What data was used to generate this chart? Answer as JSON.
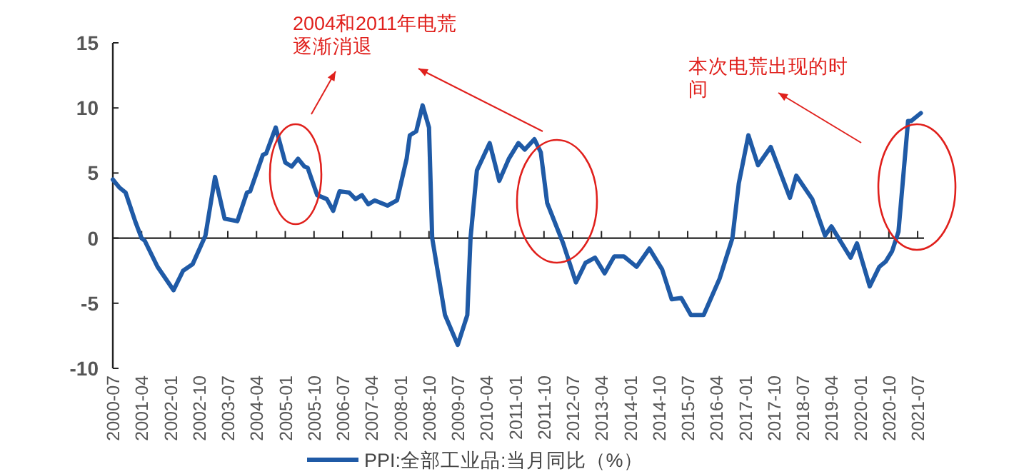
{
  "chart_data": {
    "type": "line",
    "x": [
      "2000-07",
      "2000-09",
      "2000-11",
      "2001-02",
      "2001-04",
      "2001-05",
      "2001-09",
      "2002-02",
      "2002-05",
      "2002-08",
      "2002-12",
      "2003-03",
      "2003-06",
      "2003-10",
      "2004-01",
      "2004-02",
      "2004-06",
      "2004-07",
      "2004-10",
      "2005-01",
      "2005-03",
      "2005-05",
      "2005-07",
      "2005-08",
      "2005-11",
      "2006-02",
      "2006-04",
      "2006-06",
      "2006-09",
      "2006-11",
      "2007-01",
      "2007-03",
      "2007-05",
      "2007-09",
      "2007-12",
      "2008-03",
      "2008-04",
      "2008-06",
      "2008-08",
      "2008-10",
      "2008-11",
      "2009-03",
      "2009-07",
      "2009-10",
      "2009-11",
      "2010-01",
      "2010-05",
      "2010-08",
      "2010-11",
      "2011-02",
      "2011-04",
      "2011-07",
      "2011-09",
      "2011-11",
      "2012-04",
      "2012-06",
      "2012-08",
      "2012-11",
      "2013-02",
      "2013-05",
      "2013-08",
      "2013-11",
      "2014-03",
      "2014-07",
      "2014-11",
      "2015-02",
      "2015-05",
      "2015-08",
      "2015-12",
      "2016-05",
      "2016-09",
      "2016-11",
      "2017-02",
      "2017-05",
      "2017-09",
      "2018-03",
      "2018-05",
      "2018-10",
      "2019-02",
      "2019-04",
      "2019-07",
      "2019-10",
      "2019-12",
      "2020-04",
      "2020-07",
      "2020-09",
      "2020-11",
      "2021-01",
      "2021-04",
      "2021-05",
      "2021-08"
    ],
    "series": [
      {
        "name": "PPI:全部工业品:当月同比（%）",
        "color": "#1f5aa6",
        "values": [
          4.5,
          3.9,
          3.5,
          1.3,
          0,
          -0.2,
          -2.2,
          -4.0,
          -2.5,
          -2.0,
          0.2,
          4.7,
          1.5,
          1.3,
          3.5,
          3.6,
          6.4,
          6.5,
          8.5,
          5.8,
          5.5,
          6.1,
          5.5,
          5.4,
          3.3,
          3.0,
          2.1,
          3.6,
          3.5,
          3.0,
          3.3,
          2.6,
          2.9,
          2.5,
          2.9,
          6.1,
          7.9,
          8.2,
          10.2,
          8.5,
          0,
          -5.9,
          -8.2,
          -5.9,
          0,
          5.2,
          7.3,
          4.4,
          6.1,
          7.3,
          6.8,
          7.6,
          6.6,
          2.7,
          -0.4,
          -1.9,
          -3.4,
          -1.9,
          -1.5,
          -2.7,
          -1.4,
          -1.4,
          -2.2,
          -0.8,
          -2.4,
          -4.7,
          -4.6,
          -5.9,
          -5.9,
          -3.1,
          0,
          4.2,
          7.9,
          5.6,
          7.0,
          3.1,
          4.8,
          3.0,
          0.2,
          0.9,
          -0.3,
          -1.5,
          -0.4,
          -3.7,
          -2.2,
          -1.8,
          -1.0,
          0.5,
          9.0,
          9.0,
          9.6
        ]
      }
    ],
    "xlim": [
      "2000-07",
      "2021-09"
    ],
    "xticks": [
      "2000-07",
      "2001-04",
      "2002-01",
      "2002-10",
      "2003-07",
      "2004-04",
      "2005-01",
      "2005-10",
      "2006-07",
      "2007-04",
      "2008-01",
      "2008-10",
      "2009-07",
      "2010-04",
      "2011-01",
      "2011-10",
      "2012-07",
      "2013-04",
      "2014-01",
      "2014-10",
      "2015-07",
      "2016-04",
      "2017-01",
      "2017-10",
      "2018-07",
      "2019-04",
      "2020-01",
      "2020-10",
      "2021-07"
    ],
    "ylim": [
      -10,
      15
    ],
    "yticks": [
      -10,
      -5,
      0,
      5,
      10,
      15
    ],
    "legend": "bottom",
    "annotations": [
      "2004和2011年电荒逐渐消退",
      "本次电荒出现的时间"
    ]
  }
}
